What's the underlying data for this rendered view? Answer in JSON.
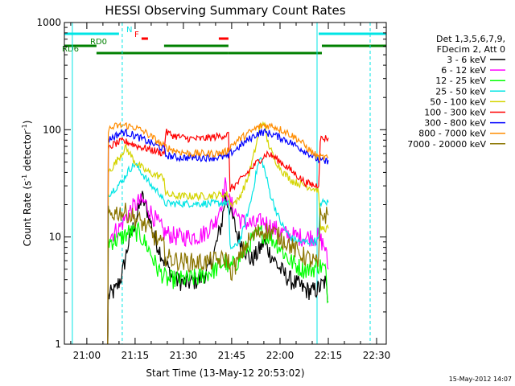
{
  "chart_data": {
    "type": "line",
    "title": "HESSI Observing Summary Count Rates",
    "xlabel": "Start Time (13-May-12 20:53:02)",
    "ylabel": "Count Rate (s",
    "ylabel_sup": "-1",
    "ylabel_mid": " detector",
    "ylabel_sup2": "-1",
    "ylabel_end": ")",
    "y_scale": "log",
    "ylim": [
      1,
      1000
    ],
    "xlim": [
      "20:53:02",
      "22:33:00"
    ],
    "x_ticks": [
      "21:00",
      "21:15",
      "21:30",
      "21:45",
      "22:00",
      "22:15",
      "22:30"
    ],
    "y_ticks": [
      "1",
      "10",
      "100",
      "1000"
    ],
    "timestamp": "15-May-2012 14:07",
    "legend": {
      "position": "right",
      "header": [
        "Det 1,3,5,6,7,9,",
        "FDecim 2, Att 0"
      ]
    },
    "status_bars": [
      {
        "label": "N",
        "color": "#00e5e5",
        "segments": [
          [
            "20:53",
            "21:10"
          ],
          [
            "22:12",
            "22:33"
          ]
        ]
      },
      {
        "label": "F",
        "color": "#ff0000",
        "segments": [
          [
            "21:17",
            "21:19"
          ],
          [
            "21:41",
            "21:44"
          ]
        ]
      },
      {
        "label": "RD0",
        "color": "#008000",
        "segments": [
          [
            "20:53",
            "21:03"
          ],
          [
            "21:24",
            "21:44"
          ],
          [
            "22:13",
            "22:33"
          ]
        ]
      },
      {
        "label": "RD6",
        "color": "#008000",
        "segments": [
          [
            "21:03",
            "21:44"
          ],
          [
            "21:44",
            "22:13"
          ]
        ]
      }
    ],
    "vlines": [
      {
        "time": "20:55:30",
        "color": "#00e5e5",
        "style": "solid"
      },
      {
        "time": "21:11:00",
        "color": "#00e5e5",
        "style": "dashed"
      },
      {
        "time": "22:11:30",
        "color": "#00e5e5",
        "style": "solid"
      },
      {
        "time": "22:28:00",
        "color": "#00e5e5",
        "style": "dashed"
      }
    ],
    "series": [
      {
        "name": "3 - 6 keV",
        "color": "#000000",
        "points": [
          [
            "21:06:30",
            1.0
          ],
          [
            "21:06:40",
            2.8
          ],
          [
            "21:09",
            3.2
          ],
          [
            "21:11",
            4.5
          ],
          [
            "21:13",
            9
          ],
          [
            "21:16",
            17
          ],
          [
            "21:17",
            24
          ],
          [
            "21:19",
            17
          ],
          [
            "21:21",
            10
          ],
          [
            "21:24",
            6
          ],
          [
            "21:27",
            4
          ],
          [
            "21:31",
            3.7
          ],
          [
            "21:35",
            4
          ],
          [
            "21:38",
            5
          ],
          [
            "21:40",
            8
          ],
          [
            "21:42",
            14
          ],
          [
            "21:43",
            24
          ],
          [
            "21:44",
            20
          ],
          [
            "21:47",
            10
          ],
          [
            "21:51",
            6
          ],
          [
            "21:53",
            7
          ],
          [
            "21:55",
            9
          ],
          [
            "21:57",
            7
          ],
          [
            "22:00",
            5
          ],
          [
            "22:03",
            4
          ],
          [
            "22:06",
            3.5
          ],
          [
            "22:08",
            3.2
          ],
          [
            "22:10",
            3.1
          ],
          [
            "22:12",
            3.3
          ],
          [
            "22:14",
            3.8
          ],
          [
            "22:15",
            2.5
          ]
        ]
      },
      {
        "name": "6 - 12 keV",
        "color": "#ff00ff",
        "points": [
          [
            "21:06:30",
            1.0
          ],
          [
            "21:06:40",
            10
          ],
          [
            "21:10",
            12
          ],
          [
            "21:13",
            17
          ],
          [
            "21:16",
            21
          ],
          [
            "21:18",
            21
          ],
          [
            "21:21",
            15
          ],
          [
            "21:24",
            11
          ],
          [
            "21:28",
            10
          ],
          [
            "21:32",
            10
          ],
          [
            "21:36",
            10.5
          ],
          [
            "21:40",
            14
          ],
          [
            "21:42",
            22
          ],
          [
            "21:43",
            30
          ],
          [
            "21:44",
            22
          ],
          [
            "21:48",
            14
          ],
          [
            "21:52",
            13
          ],
          [
            "21:55",
            14
          ],
          [
            "21:58",
            12
          ],
          [
            "22:02",
            10.5
          ],
          [
            "22:06",
            10
          ],
          [
            "22:10",
            10
          ],
          [
            "22:12",
            10
          ],
          [
            "22:14",
            8
          ],
          [
            "22:15",
            5
          ]
        ]
      },
      {
        "name": "12 - 25 keV",
        "color": "#00ff00",
        "points": [
          [
            "21:06:30",
            1.0
          ],
          [
            "21:06:40",
            9
          ],
          [
            "21:10",
            9.5
          ],
          [
            "21:13",
            11
          ],
          [
            "21:16",
            11
          ],
          [
            "21:19",
            8
          ],
          [
            "21:22",
            5
          ],
          [
            "21:25",
            4
          ],
          [
            "21:30",
            4
          ],
          [
            "21:35",
            4.2
          ],
          [
            "21:40",
            5
          ],
          [
            "21:43",
            6
          ],
          [
            "21:44",
            5
          ],
          [
            "21:47",
            6
          ],
          [
            "21:51",
            9
          ],
          [
            "21:54",
            11
          ],
          [
            "21:57",
            10
          ],
          [
            "22:00",
            8
          ],
          [
            "22:03",
            6
          ],
          [
            "22:07",
            5
          ],
          [
            "22:10",
            5
          ],
          [
            "22:12",
            5.5
          ],
          [
            "22:14",
            5
          ],
          [
            "22:15",
            2.5
          ]
        ]
      },
      {
        "name": "25 - 50 keV",
        "color": "#00e5e5",
        "points": [
          [
            "21:06:30",
            1.0
          ],
          [
            "21:06:40",
            25
          ],
          [
            "21:08",
            27
          ],
          [
            "21:11",
            33
          ],
          [
            "21:13",
            42
          ],
          [
            "21:15",
            48
          ],
          [
            "21:17",
            40
          ],
          [
            "21:20",
            30
          ],
          [
            "21:23",
            25
          ],
          [
            "21:24",
            20.5
          ],
          [
            "21:30",
            20.5
          ],
          [
            "21:35",
            20.5
          ],
          [
            "21:40",
            20.5
          ],
          [
            "21:44",
            21
          ],
          [
            "21:44:30",
            8
          ],
          [
            "21:46",
            8
          ],
          [
            "21:48",
            10
          ],
          [
            "21:51",
            22
          ],
          [
            "21:53",
            45
          ],
          [
            "21:54",
            55
          ],
          [
            "21:55",
            45
          ],
          [
            "21:57",
            25
          ],
          [
            "22:00",
            14
          ],
          [
            "22:03",
            10
          ],
          [
            "22:06",
            9
          ],
          [
            "22:10",
            9
          ],
          [
            "22:12",
            9.5
          ],
          [
            "22:12:30",
            21
          ],
          [
            "22:15",
            21
          ]
        ]
      },
      {
        "name": "50 - 100 keV",
        "color": "#d4d400",
        "points": [
          [
            "21:06:30",
            1.0
          ],
          [
            "21:06:40",
            40
          ],
          [
            "21:08",
            45
          ],
          [
            "21:10",
            55
          ],
          [
            "21:12",
            68
          ],
          [
            "21:13",
            62
          ],
          [
            "21:15",
            50
          ],
          [
            "21:18",
            42
          ],
          [
            "21:21",
            38
          ],
          [
            "21:24",
            36
          ],
          [
            "21:24:30",
            25
          ],
          [
            "21:28",
            24
          ],
          [
            "21:32",
            24
          ],
          [
            "21:36",
            24
          ],
          [
            "21:40",
            24.5
          ],
          [
            "21:44",
            25
          ],
          [
            "21:44:30",
            20
          ],
          [
            "21:47",
            22
          ],
          [
            "21:50",
            35
          ],
          [
            "21:52",
            60
          ],
          [
            "21:54",
            110
          ],
          [
            "21:55",
            120
          ],
          [
            "21:56",
            80
          ],
          [
            "21:58",
            55
          ],
          [
            "22:01",
            40
          ],
          [
            "22:04",
            33
          ],
          [
            "22:08",
            30
          ],
          [
            "22:11",
            28
          ],
          [
            "22:12",
            27
          ],
          [
            "22:12:30",
            12
          ],
          [
            "22:15",
            12
          ]
        ]
      },
      {
        "name": "100 - 300 keV",
        "color": "#ff0000",
        "points": [
          [
            "21:06:30",
            1.0
          ],
          [
            "21:06:40",
            65
          ],
          [
            "21:08",
            72
          ],
          [
            "21:11",
            78
          ],
          [
            "21:13",
            76
          ],
          [
            "21:16",
            70
          ],
          [
            "21:20",
            65
          ],
          [
            "21:24",
            60
          ],
          [
            "21:24:30",
            95
          ],
          [
            "21:27",
            88
          ],
          [
            "21:31",
            83
          ],
          [
            "21:35",
            82
          ],
          [
            "21:39",
            85
          ],
          [
            "21:42",
            88
          ],
          [
            "21:44",
            90
          ],
          [
            "21:44:30",
            28
          ],
          [
            "21:47",
            32
          ],
          [
            "21:50",
            40
          ],
          [
            "21:53",
            50
          ],
          [
            "21:56",
            60
          ],
          [
            "21:58",
            56
          ],
          [
            "22:01",
            48
          ],
          [
            "22:05",
            38
          ],
          [
            "22:08",
            32
          ],
          [
            "22:11",
            30
          ],
          [
            "22:12",
            31
          ],
          [
            "22:12:30",
            82
          ],
          [
            "22:15",
            84
          ]
        ]
      },
      {
        "name": "300 - 800 keV",
        "color": "#0000ff",
        "points": [
          [
            "21:06:30",
            1.0
          ],
          [
            "21:06:40",
            80
          ],
          [
            "21:08",
            85
          ],
          [
            "21:11",
            95
          ],
          [
            "21:13",
            93
          ],
          [
            "21:16",
            85
          ],
          [
            "21:20",
            75
          ],
          [
            "21:24",
            66
          ],
          [
            "21:24:30",
            58
          ],
          [
            "21:28",
            55
          ],
          [
            "21:32",
            55
          ],
          [
            "21:36",
            55
          ],
          [
            "21:40",
            55
          ],
          [
            "21:44",
            56
          ],
          [
            "21:44:30",
            60
          ],
          [
            "21:47",
            68
          ],
          [
            "21:50",
            80
          ],
          [
            "21:53",
            92
          ],
          [
            "21:55",
            95
          ],
          [
            "21:58",
            90
          ],
          [
            "22:02",
            80
          ],
          [
            "22:06",
            68
          ],
          [
            "22:09",
            60
          ],
          [
            "22:12",
            52
          ],
          [
            "22:14",
            50
          ],
          [
            "22:15",
            52
          ]
        ]
      },
      {
        "name": "800 - 7000 keV",
        "color": "#ff8c00",
        "points": [
          [
            "21:06:30",
            1.0
          ],
          [
            "21:06:40",
            100
          ],
          [
            "21:09",
            108
          ],
          [
            "21:12",
            110
          ],
          [
            "21:15",
            105
          ],
          [
            "21:18",
            95
          ],
          [
            "21:21",
            82
          ],
          [
            "21:24",
            70
          ],
          [
            "21:28",
            63
          ],
          [
            "21:32",
            60
          ],
          [
            "21:36",
            60
          ],
          [
            "21:40",
            60
          ],
          [
            "21:43",
            62
          ],
          [
            "21:44",
            65
          ],
          [
            "21:44:30",
            70
          ],
          [
            "21:47",
            80
          ],
          [
            "21:50",
            92
          ],
          [
            "21:53",
            105
          ],
          [
            "21:55",
            110
          ],
          [
            "21:58",
            108
          ],
          [
            "22:02",
            95
          ],
          [
            "22:06",
            80
          ],
          [
            "22:09",
            65
          ],
          [
            "22:12",
            55
          ],
          [
            "22:15",
            55
          ]
        ]
      },
      {
        "name": "7000 - 20000 keV",
        "color": "#8b7500",
        "points": [
          [
            "21:06:30",
            1.0
          ],
          [
            "21:06:40",
            16
          ],
          [
            "21:09",
            17
          ],
          [
            "21:12",
            17
          ],
          [
            "21:15",
            15
          ],
          [
            "21:18",
            13
          ],
          [
            "21:21",
            10
          ],
          [
            "21:24",
            8
          ],
          [
            "21:24:30",
            6.5
          ],
          [
            "21:28",
            6
          ],
          [
            "21:32",
            5.8
          ],
          [
            "21:36",
            5.8
          ],
          [
            "21:40",
            6
          ],
          [
            "21:44",
            6.2
          ],
          [
            "21:44:30",
            4.5
          ],
          [
            "21:47",
            6
          ],
          [
            "21:50",
            9
          ],
          [
            "21:53",
            11
          ],
          [
            "21:55",
            11.5
          ],
          [
            "21:58",
            11
          ],
          [
            "22:02",
            9
          ],
          [
            "22:06",
            7
          ],
          [
            "22:10",
            6
          ],
          [
            "22:12",
            5.5
          ],
          [
            "22:12:30",
            16
          ],
          [
            "22:15",
            16
          ]
        ]
      }
    ]
  }
}
